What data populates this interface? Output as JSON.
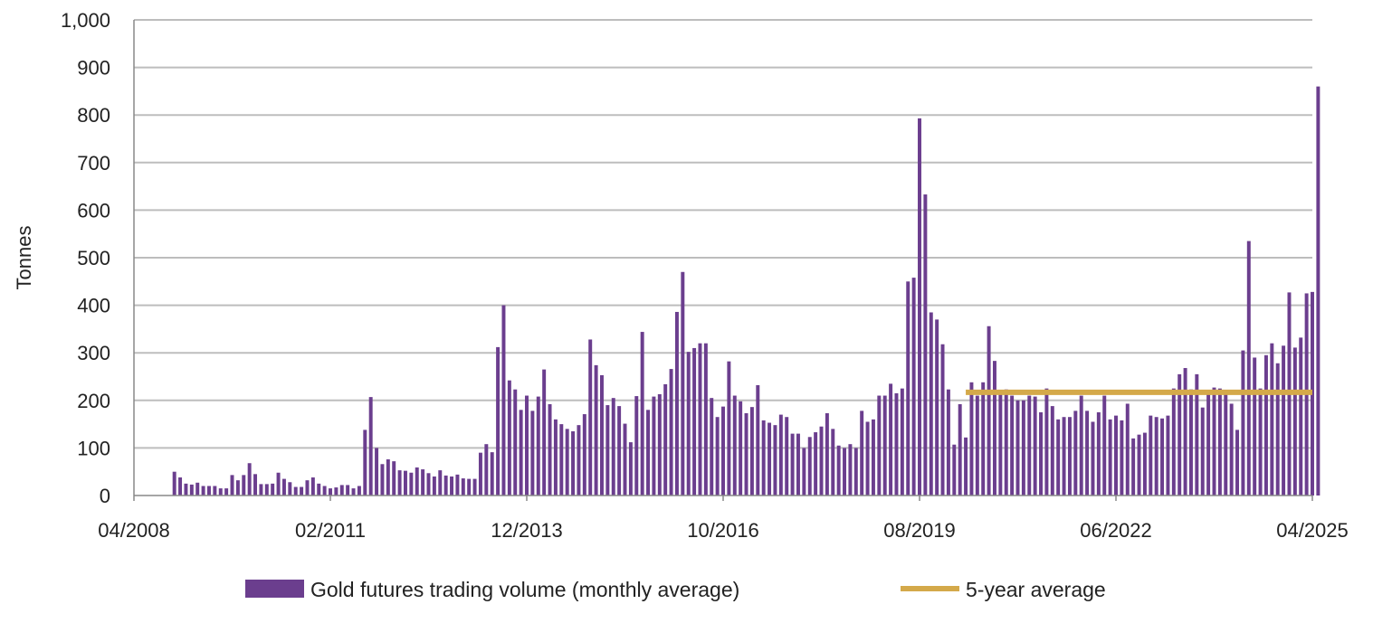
{
  "chart_data": {
    "type": "bar",
    "title": "",
    "xlabel": "",
    "ylabel": "Tonnes",
    "ylim": [
      0,
      1000
    ],
    "y_ticks": [
      "0",
      "100",
      "200",
      "300",
      "400",
      "500",
      "600",
      "700",
      "800",
      "900",
      "1,000"
    ],
    "y_tick_values": [
      0,
      100,
      200,
      300,
      400,
      500,
      600,
      700,
      800,
      900,
      1000
    ],
    "x_ticks": [
      "04/2008",
      "02/2011",
      "12/2013",
      "10/2016",
      "08/2019",
      "06/2022",
      "04/2025"
    ],
    "x_start": "04/2008",
    "x_end": "04/2025",
    "grid": "horizontal",
    "legend_position": "bottom",
    "colors": {
      "bars": "#6b3e8e",
      "average_line": "#d4a94a",
      "grid": "#bdbdbd",
      "axis": "#888888"
    },
    "series": [
      {
        "name": "Gold futures trading volume (monthly average)",
        "type": "bar",
        "x_start": "11/2008",
        "values": [
          50,
          38,
          25,
          23,
          27,
          20,
          20,
          20,
          15,
          15,
          43,
          32,
          43,
          68,
          45,
          24,
          24,
          25,
          48,
          35,
          28,
          18,
          18,
          32,
          38,
          25,
          20,
          15,
          17,
          22,
          22,
          15,
          20,
          138,
          207,
          100,
          66,
          76,
          72,
          53,
          52,
          48,
          59,
          55,
          47,
          40,
          53,
          42,
          40,
          44,
          36,
          35,
          35,
          90,
          108,
          91,
          312,
          400,
          242,
          223,
          180,
          210,
          178,
          208,
          265,
          192,
          160,
          150,
          140,
          135,
          148,
          171,
          328,
          274,
          253,
          190,
          205,
          188,
          151,
          112,
          209,
          344,
          180,
          208,
          213,
          234,
          266,
          386,
          470,
          302,
          310,
          320,
          320,
          205,
          165,
          187,
          282,
          210,
          198,
          173,
          186,
          232,
          158,
          153,
          148,
          170,
          165,
          130,
          130,
          100,
          123,
          133,
          145,
          173,
          140,
          105,
          100,
          108,
          100,
          178,
          155,
          160,
          210,
          210,
          235,
          215,
          225,
          450,
          458,
          793,
          633,
          385,
          370,
          318,
          223,
          107,
          192,
          122,
          238,
          210,
          238,
          356,
          283,
          213,
          223,
          210,
          200,
          200,
          210,
          208,
          175,
          225,
          188,
          160,
          165,
          165,
          178,
          210,
          178,
          155,
          175,
          210,
          160,
          168,
          158,
          193,
          120,
          128,
          132,
          168,
          165,
          162,
          168,
          225,
          255,
          268,
          223,
          255,
          185,
          222,
          227,
          225,
          220,
          193,
          138,
          305,
          535,
          290,
          225,
          295,
          320,
          278,
          315,
          427,
          311,
          332,
          425,
          428,
          860
        ]
      },
      {
        "name": "5-year average",
        "type": "line",
        "from": "04/2020",
        "to": "04/2025",
        "value": 217
      }
    ]
  },
  "legend": {
    "bars_label": "Gold futures trading volume (monthly average)",
    "line_label": "5-year average"
  }
}
